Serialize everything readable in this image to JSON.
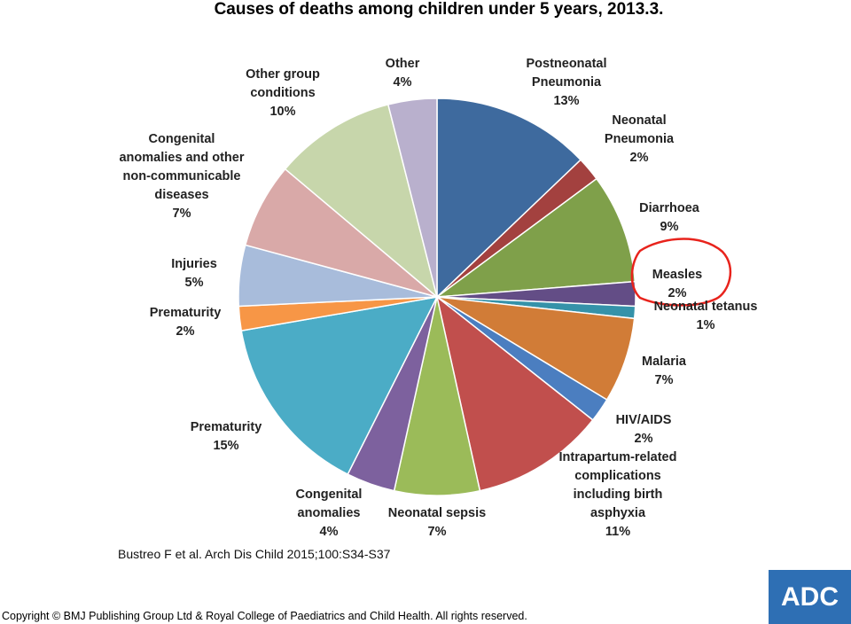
{
  "title": "Causes of deaths among children under 5 years, 2013.3.",
  "citation": "Bustreo F et al. Arch Dis Child 2015;100:S34-S37",
  "copyright": "Copyright © BMJ Publishing Group Ltd & Royal College of Paediatrics and Child Health. All rights reserved.",
  "logo_text": "ADC",
  "colors": {
    "annotation": "#e8231c",
    "logo_bg": "#2e6fb4"
  },
  "chart_data": {
    "type": "pie",
    "title": "Causes of deaths among children under 5 years, 2013.3.",
    "slices": [
      {
        "label": [
          "Postneonatal",
          "Pneumonia",
          "13%"
        ],
        "value": 13,
        "color": "#3e6a9e"
      },
      {
        "label": [
          "Neonatal",
          "Pneumonia",
          "2%"
        ],
        "value": 2,
        "color": "#a3413f"
      },
      {
        "label": [
          "Diarrhoea",
          "9%"
        ],
        "value": 9,
        "color": "#7fa04a"
      },
      {
        "label": [
          "Measles",
          "2%"
        ],
        "value": 2,
        "color": "#634d86"
      },
      {
        "label": [
          "Neonatal tetanus",
          "1%"
        ],
        "value": 1,
        "color": "#3592a9"
      },
      {
        "label": [
          "Malaria",
          "7%"
        ],
        "value": 7,
        "color": "#d17c37"
      },
      {
        "label": [
          "HIV/AIDS",
          "2%"
        ],
        "value": 2,
        "color": "#4b7ec0"
      },
      {
        "label": [
          "Intrapartum-related",
          "complications",
          "including birth",
          "asphyxia",
          "11%"
        ],
        "value": 11,
        "color": "#c14f4d"
      },
      {
        "label": [
          "Neonatal sepsis",
          "7%"
        ],
        "value": 7,
        "color": "#9bbb59"
      },
      {
        "label": [
          "Congenital",
          "anomalies",
          "4%"
        ],
        "value": 4,
        "color": "#7d619e"
      },
      {
        "label": [
          "Prematurity",
          "15%"
        ],
        "value": 15,
        "color": "#4bacc6"
      },
      {
        "label": [
          "Prematurity",
          "2%"
        ],
        "value": 2,
        "color": "#f79646"
      },
      {
        "label": [
          "Injuries",
          "5%"
        ],
        "value": 5,
        "color": "#a8bcdb"
      },
      {
        "label": [
          "Congenital",
          "anomalies and other",
          "non-communicable",
          "diseases",
          "7%"
        ],
        "value": 7,
        "color": "#d9a9a8"
      },
      {
        "label": [
          "Other group",
          "conditions",
          "10%"
        ],
        "value": 10,
        "color": "#c7d6ab"
      },
      {
        "label": [
          "Other",
          "4%"
        ],
        "value": 4,
        "color": "#b9b0cd"
      }
    ],
    "annotation": "measles-circled"
  }
}
